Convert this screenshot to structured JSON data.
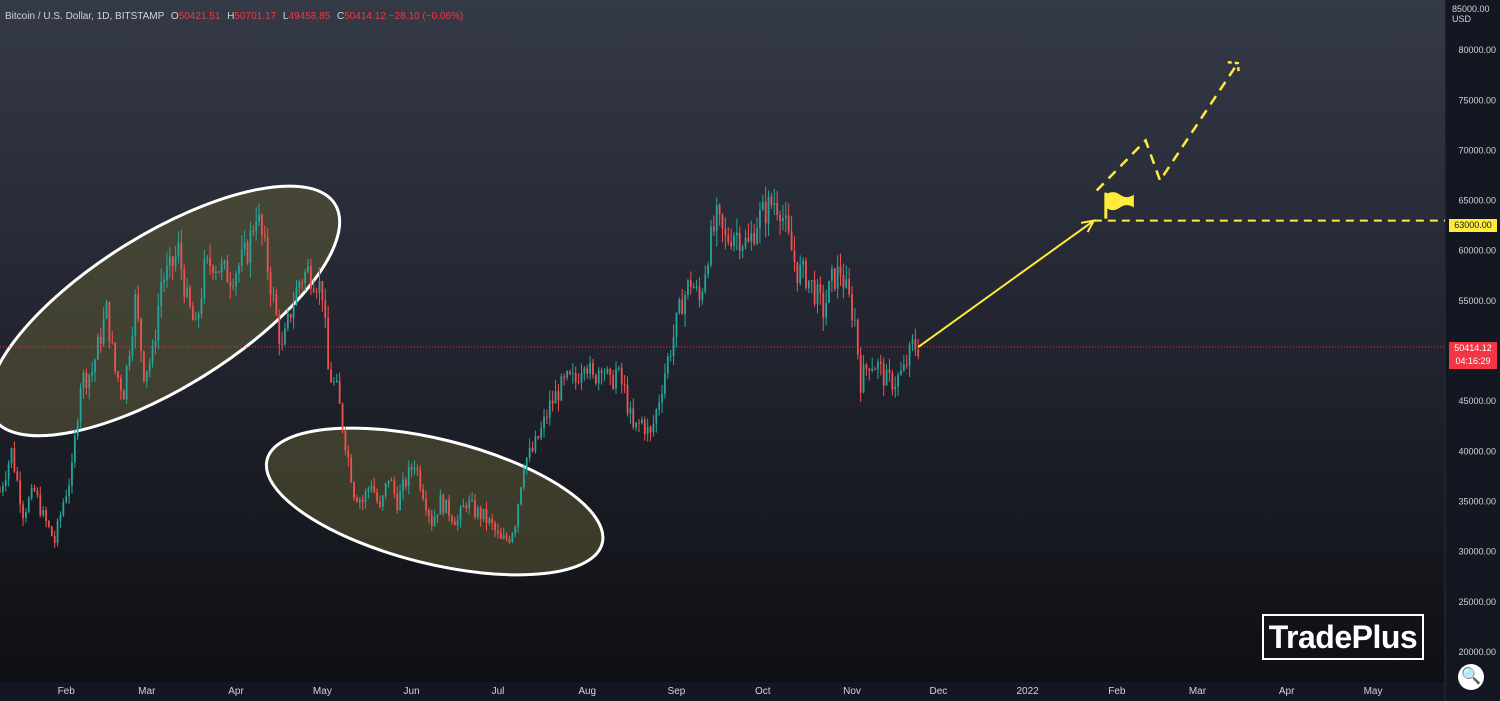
{
  "legend": {
    "symbol": "Bitcoin / U.S. Dollar, 1D, BITSTAMP",
    "o_key": "O",
    "o_val": "50421.51",
    "h_key": "H",
    "h_val": "50701.17",
    "l_key": "L",
    "l_val": "49458.85",
    "c_key": "C",
    "c_val": "50414.12",
    "change": "−28.10 (−0.06%)"
  },
  "axis": {
    "currency": "USD",
    "top_partial_label": "85000.00",
    "current_price_label": "50414.12",
    "countdown_label": "04:16:29",
    "target_label": "63000.00"
  },
  "brand": {
    "logo_text": "TradePlus"
  },
  "icons": {
    "zoom": "zoom-magnifier-icon",
    "flag": "flag-icon"
  },
  "colors": {
    "up": "#26a69a",
    "down": "#ef5350",
    "annotation": "#ffeb3b",
    "ellipse_stroke": "#ffffff",
    "ellipse_fill": "#5c5a34",
    "current_price": "#f23645"
  },
  "chart_data": {
    "type": "candlestick",
    "interval": "1D",
    "ylim": [
      17000,
      85000
    ],
    "y_ticks": [
      20000,
      25000,
      30000,
      35000,
      40000,
      45000,
      50000,
      55000,
      60000,
      65000,
      70000,
      75000,
      80000
    ],
    "y_tick_labels": [
      "20000.00",
      "25000.00",
      "30000.00",
      "35000.00",
      "40000.00",
      "45000.00",
      "50000.00",
      "55000.00",
      "60000.00",
      "65000.00",
      "70000.00",
      "75000.00",
      "80000.00"
    ],
    "x_ticks": [
      "Feb",
      "Mar",
      "Apr",
      "May",
      "Jun",
      "Jul",
      "Aug",
      "Sep",
      "Oct",
      "Nov",
      "Dec",
      "2022",
      "Feb",
      "Mar",
      "Apr",
      "May"
    ],
    "x_tick_days": [
      31,
      59,
      90,
      120,
      151,
      181,
      212,
      243,
      273,
      304,
      334,
      365,
      396,
      424,
      455,
      485
    ],
    "x_range_days": [
      8,
      510
    ],
    "last_day": 353,
    "close_path": [
      [
        8,
        36000
      ],
      [
        12,
        40000
      ],
      [
        16,
        34000
      ],
      [
        20,
        36000
      ],
      [
        23,
        33500
      ],
      [
        27,
        31000
      ],
      [
        30,
        35000
      ],
      [
        33,
        38000
      ],
      [
        36,
        47000
      ],
      [
        40,
        48000
      ],
      [
        45,
        54000
      ],
      [
        48,
        48000
      ],
      [
        51,
        46000
      ],
      [
        55,
        55000
      ],
      [
        58,
        48000
      ],
      [
        61,
        49500
      ],
      [
        64,
        57000
      ],
      [
        67,
        58000
      ],
      [
        70,
        60000
      ],
      [
        73,
        55000
      ],
      [
        76,
        52000
      ],
      [
        79,
        58000
      ],
      [
        82,
        59000
      ],
      [
        85,
        58000
      ],
      [
        88,
        57500
      ],
      [
        91,
        58500
      ],
      [
        94,
        60000
      ],
      [
        97,
        64000
      ],
      [
        100,
        60000
      ],
      [
        103,
        55000
      ],
      [
        106,
        50000
      ],
      [
        109,
        54000
      ],
      [
        112,
        57000
      ],
      [
        115,
        58000
      ],
      [
        118,
        57000
      ],
      [
        120,
        56000
      ],
      [
        122,
        48000
      ],
      [
        125,
        46000
      ],
      [
        128,
        41000
      ],
      [
        131,
        36000
      ],
      [
        134,
        35000
      ],
      [
        137,
        37000
      ],
      [
        140,
        34000
      ],
      [
        143,
        37500
      ],
      [
        146,
        35000
      ],
      [
        149,
        37000
      ],
      [
        152,
        39000
      ],
      [
        155,
        36000
      ],
      [
        158,
        33000
      ],
      [
        161,
        35000
      ],
      [
        164,
        34000
      ],
      [
        167,
        33000
      ],
      [
        170,
        35000
      ],
      [
        173,
        34000
      ],
      [
        176,
        33500
      ],
      [
        179,
        32500
      ],
      [
        182,
        31000
      ],
      [
        185,
        31500
      ],
      [
        187,
        33000
      ],
      [
        190,
        39000
      ],
      [
        193,
        40000
      ],
      [
        196,
        42000
      ],
      [
        199,
        44500
      ],
      [
        202,
        46000
      ],
      [
        205,
        47000
      ],
      [
        208,
        47000
      ],
      [
        211,
        49500
      ],
      [
        214,
        47000
      ],
      [
        217,
        49000
      ],
      [
        220,
        46500
      ],
      [
        222,
        48000
      ],
      [
        225,
        46000
      ],
      [
        228,
        42000
      ],
      [
        231,
        43000
      ],
      [
        234,
        41500
      ],
      [
        236,
        44000
      ],
      [
        239,
        48000
      ],
      [
        242,
        51500
      ],
      [
        245,
        55000
      ],
      [
        248,
        57000
      ],
      [
        251,
        55000
      ],
      [
        254,
        60000
      ],
      [
        257,
        63000
      ],
      [
        260,
        61000
      ],
      [
        263,
        62000
      ],
      [
        265,
        61500
      ],
      [
        268,
        60500
      ],
      [
        271,
        63000
      ],
      [
        274,
        64000
      ],
      [
        277,
        65000
      ],
      [
        279,
        64500
      ],
      [
        282,
        61000
      ],
      [
        285,
        58000
      ],
      [
        288,
        57500
      ],
      [
        291,
        56000
      ],
      [
        294,
        54000
      ],
      [
        297,
        57000
      ],
      [
        300,
        58000
      ],
      [
        302,
        56000
      ],
      [
        305,
        53000
      ],
      [
        307,
        47000
      ],
      [
        310,
        49000
      ],
      [
        313,
        48500
      ],
      [
        316,
        47000
      ],
      [
        319,
        47000
      ],
      [
        322,
        48000
      ],
      [
        325,
        50500
      ],
      [
        327,
        50400
      ]
    ],
    "ellipses": [
      {
        "cx_day": 65,
        "cy_price": 54000,
        "rx_days": 70,
        "ry_price": 7600,
        "rotate_deg": -32
      },
      {
        "cx_day": 159,
        "cy_price": 35000,
        "rx_days": 60,
        "ry_price": 6200,
        "rotate_deg": 14
      }
    ],
    "annotations": {
      "target_price": 63000,
      "current_price": 50414.12,
      "arrow": [
        [
          327,
          50400
        ],
        [
          388,
          63000
        ]
      ],
      "flag_at": [
        388,
        63000
      ],
      "projection_path": [
        [
          389,
          66000
        ],
        [
          406,
          71000
        ],
        [
          411,
          67000
        ],
        [
          438,
          78700
        ]
      ]
    }
  }
}
